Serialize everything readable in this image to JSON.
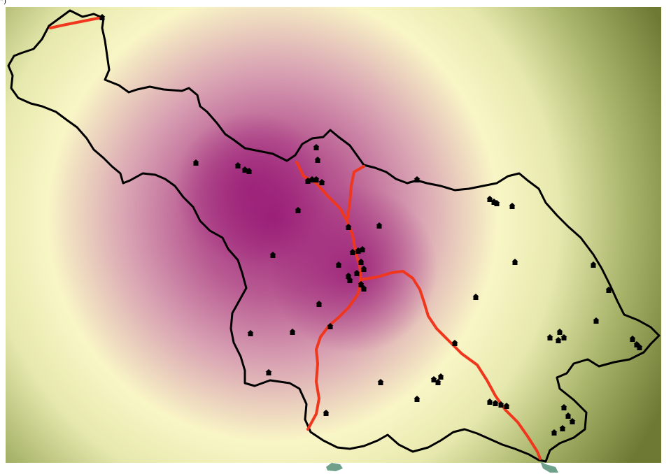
{
  "map": {
    "corner_mark": "”)",
    "colors": {
      "hot": "#9b1f78",
      "mid": "#d9a3b3",
      "light": "#f9f6c6",
      "outer": "#6e7a34",
      "road": "#f0371e",
      "boundary": "#000000",
      "marker": "#000000",
      "water": "#6fa08a"
    },
    "layers": [
      {
        "name": "density-surface",
        "kind": "heatmap"
      },
      {
        "name": "district-boundary",
        "kind": "polygon"
      },
      {
        "name": "roads",
        "kind": "polyline"
      },
      {
        "name": "point-features",
        "kind": "markers",
        "icon": "house-icon"
      },
      {
        "name": "water-bodies",
        "kind": "polygon"
      }
    ]
  }
}
